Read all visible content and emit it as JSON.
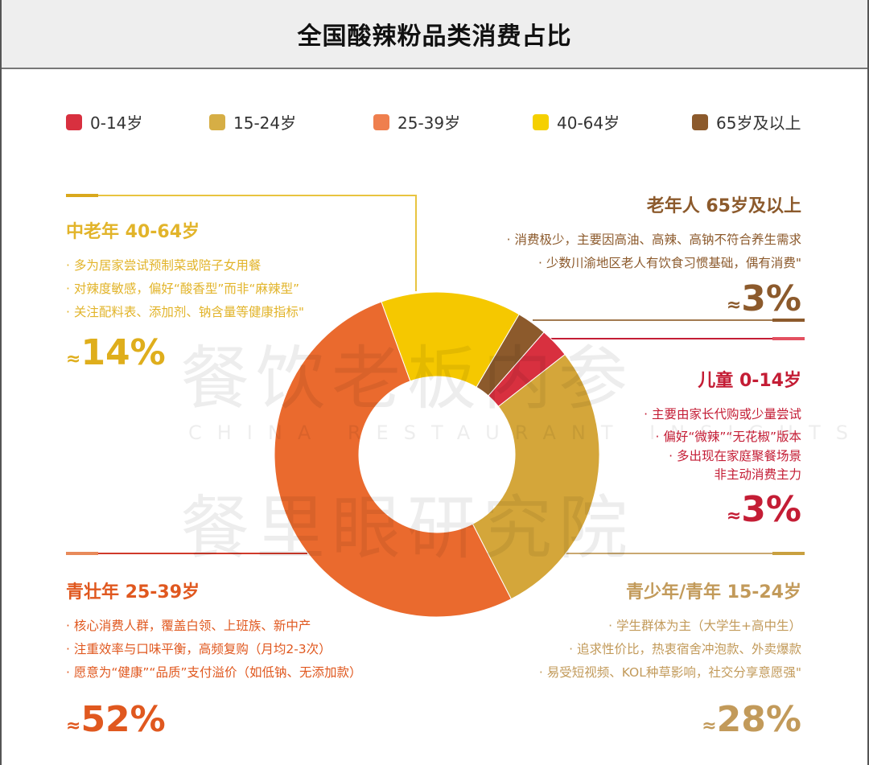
{
  "title": "全国酸辣粉品类消费占比",
  "legend": [
    {
      "label": "0-14岁",
      "color": "#d8303f"
    },
    {
      "label": "15-24岁",
      "color": "#d6ae45"
    },
    {
      "label": "25-39岁",
      "color": "#ef7f4e"
    },
    {
      "label": "40-64岁",
      "color": "#f5d000"
    },
    {
      "label": "65岁及以上",
      "color": "#8c5a2c"
    }
  ],
  "watermark": {
    "line1": "餐饮老板内参",
    "line2": "CHINA RESTAURANT INSIGHTS",
    "line3": "餐里眼研究院"
  },
  "blocks": {
    "middle_aged": {
      "title": "中老年 40-64岁",
      "bullets": [
        "· 多为居家尝试预制菜或陪子女用餐",
        "· 对辣度敏感，偏好“酸香型”而非“麻辣型”",
        "· 关注配料表、添加剂、钠含量等健康指标\""
      ],
      "approx": "≈",
      "pct": "14%",
      "color": "#e2b42a"
    },
    "elderly": {
      "title": "老年人 65岁及以上",
      "bullets": [
        "· 消费极少，主要因高油、高辣、高钠不符合养生需求",
        "· 少数川渝地区老人有饮食习惯基础，偶有消费\""
      ],
      "approx": "≈",
      "pct": "3%",
      "color": "#8c5a2c"
    },
    "children": {
      "title": "儿童 0-14岁",
      "bullets": [
        "· 主要由家长代购或少量尝试",
        "· 偏好“微辣”“无花椒”版本",
        "· 多出现在家庭聚餐场景",
        "非主动消费主力"
      ],
      "approx": "≈",
      "pct": "3%",
      "color": "#c41d35"
    },
    "young_adult": {
      "title": "青壮年 25-39岁",
      "bullets": [
        "· 核心消费人群，覆盖白领、上班族、新中产",
        "· 注重效率与口味平衡，高频复购（月均2-3次）",
        "· 愿意为“健康”“品质”支付溢价（如低钠、无添加款）"
      ],
      "approx": "≈",
      "pct": "52%",
      "color": "#e0581f"
    },
    "youth": {
      "title": "青少年/青年 15-24岁",
      "bullets": [
        "· 学生群体为主（大学生+高中生）",
        "· 追求性价比，热衷宿舍冲泡款、外卖爆款",
        "· 易受短视频、KOL种草影响，社交分享意愿强\""
      ],
      "approx": "≈",
      "pct": "28%",
      "color": "#c29a5a"
    }
  },
  "chart_data": {
    "type": "pie",
    "title": "全国酸辣粉品类消费占比",
    "donut": true,
    "categories": [
      "40-64岁",
      "65岁及以上",
      "0-14岁",
      "15-24岁",
      "25-39岁"
    ],
    "values": [
      14,
      3,
      3,
      28,
      52
    ],
    "colors": [
      "#f5c800",
      "#8c5a2c",
      "#d8303f",
      "#d4a63a",
      "#ea6a2e"
    ],
    "legend_position": "top"
  }
}
